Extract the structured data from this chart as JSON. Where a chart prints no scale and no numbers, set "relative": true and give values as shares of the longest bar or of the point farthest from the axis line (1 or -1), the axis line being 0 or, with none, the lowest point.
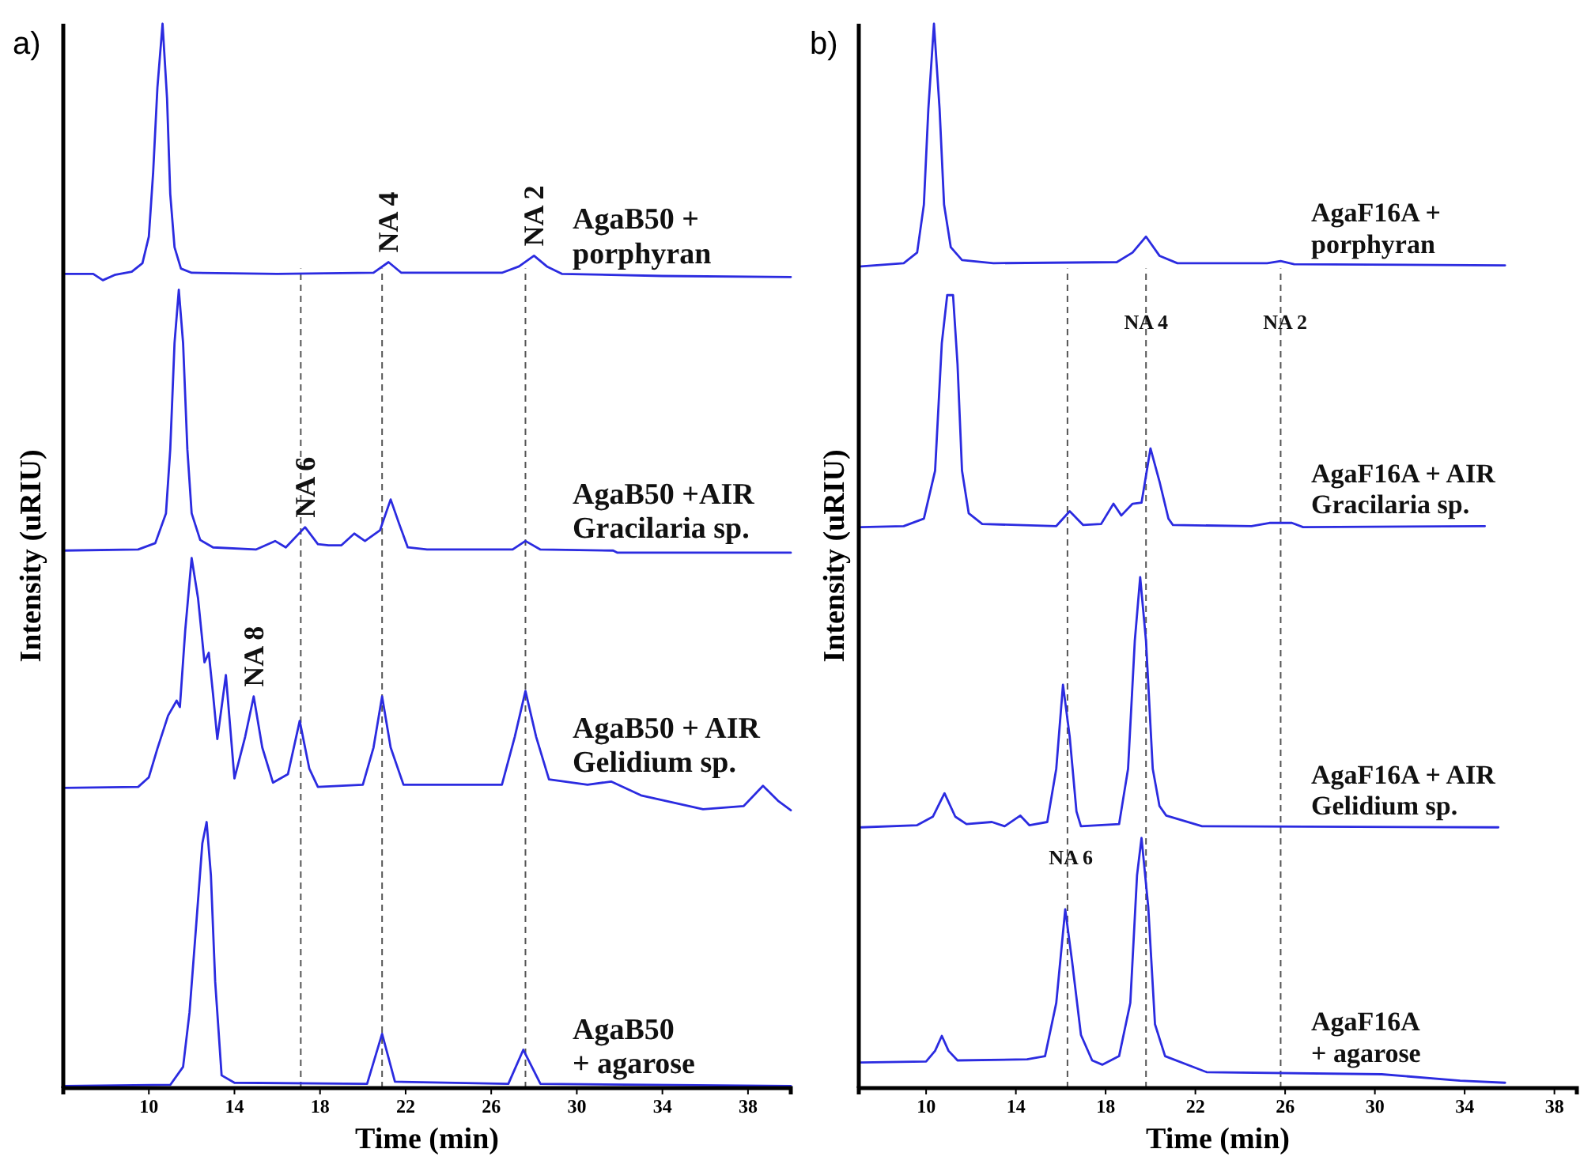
{
  "chart_data": [
    {
      "type": "line",
      "title": "a)",
      "xlabel": "Time (min)",
      "ylabel": "Intensity (uRIU)",
      "relative": true,
      "xlim": [
        6,
        40
      ],
      "xticks": [
        10,
        14,
        18,
        22,
        26,
        30,
        34,
        38
      ],
      "line_style": "solid",
      "marker": "none",
      "series": [
        {
          "name": "AgaB50 + porphyran",
          "color": "#2b2be0",
          "x": [
            6,
            7.4,
            7.85,
            8.4,
            9.2,
            9.7,
            10,
            10.2,
            10.4,
            10.64,
            10.85,
            11,
            11.2,
            11.5,
            12,
            16,
            20.5,
            21.2,
            21.8,
            26.5,
            27.3,
            28,
            28.6,
            29.3,
            34,
            40
          ],
          "values": [
            0.765,
            0.765,
            0.759,
            0.764,
            0.767,
            0.775,
            0.8,
            0.86,
            0.94,
            1,
            0.93,
            0.84,
            0.79,
            0.77,
            0.766,
            0.765,
            0.766,
            0.776,
            0.766,
            0.766,
            0.772,
            0.782,
            0.772,
            0.765,
            0.763,
            0.762
          ]
        },
        {
          "name": "AgaB50 +AIR Gracilaria sp.",
          "color": "#2b2be0",
          "x": [
            6,
            9.5,
            10.3,
            10.8,
            11,
            11.2,
            11.4,
            11.6,
            11.8,
            12,
            12.4,
            13,
            15,
            15.9,
            16.4,
            17.3,
            17.9,
            18.4,
            19,
            19.6,
            20.1,
            20.8,
            21.3,
            21.7,
            22.1,
            23,
            27,
            27.6,
            28.3,
            31.7,
            31.9,
            40
          ],
          "values": [
            0.505,
            0.506,
            0.512,
            0.54,
            0.6,
            0.7,
            0.75,
            0.7,
            0.6,
            0.54,
            0.515,
            0.508,
            0.506,
            0.514,
            0.508,
            0.527,
            0.511,
            0.51,
            0.51,
            0.521,
            0.514,
            0.524,
            0.553,
            0.53,
            0.508,
            0.506,
            0.506,
            0.514,
            0.506,
            0.505,
            0.503,
            0.503
          ]
        },
        {
          "name": "AgaB50 + AIR Gelidium sp.",
          "color": "#2b2be0",
          "x": [
            6,
            9.5,
            10,
            10.4,
            10.9,
            11.3,
            11.45,
            11.7,
            12,
            12.3,
            12.6,
            12.8,
            13,
            13.2,
            13.6,
            14,
            14.5,
            14.9,
            15.3,
            15.8,
            16.5,
            17.05,
            17.5,
            17.9,
            20,
            20.5,
            20.9,
            21.3,
            21.9,
            26.5,
            27.1,
            27.6,
            28.1,
            28.7,
            30.5,
            31.6,
            33,
            35.9,
            37.8,
            38.7,
            39.4,
            40
          ],
          "values": [
            0.282,
            0.283,
            0.292,
            0.319,
            0.35,
            0.364,
            0.358,
            0.43,
            0.498,
            0.46,
            0.4,
            0.409,
            0.37,
            0.328,
            0.388,
            0.291,
            0.33,
            0.368,
            0.32,
            0.287,
            0.295,
            0.345,
            0.3,
            0.283,
            0.285,
            0.32,
            0.368,
            0.32,
            0.285,
            0.285,
            0.33,
            0.373,
            0.33,
            0.29,
            0.285,
            0.288,
            0.275,
            0.262,
            0.265,
            0.284,
            0.27,
            0.261
          ]
        },
        {
          "name": "AgaB50 + agarose",
          "color": "#2b2be0",
          "x": [
            6,
            11,
            11.6,
            11.9,
            12.2,
            12.5,
            12.7,
            12.9,
            13.1,
            13.4,
            14,
            20.2,
            20.9,
            21.5,
            26.8,
            27.5,
            28.3,
            40
          ],
          "values": [
            0.002,
            0.003,
            0.02,
            0.071,
            0.15,
            0.23,
            0.25,
            0.2,
            0.1,
            0.012,
            0.005,
            0.004,
            0.051,
            0.006,
            0.004,
            0.036,
            0.004,
            0.002
          ]
        }
      ],
      "ref_lines": [
        {
          "axis": "x",
          "value": 17.1,
          "line_style": "dashed",
          "color": "#555555"
        },
        {
          "axis": "x",
          "value": 20.9,
          "line_style": "dashed",
          "color": "#555555"
        },
        {
          "axis": "x",
          "value": 27.6,
          "line_style": "dashed",
          "color": "#555555"
        }
      ],
      "annotations": [
        {
          "text": "NA 4",
          "x": 21.2,
          "y": 0.776
        },
        {
          "text": "NA 2",
          "x": 28,
          "y": 0.782
        },
        {
          "text": "NA 6",
          "x": 17.3,
          "y": 0.527
        },
        {
          "text": "NA 8",
          "x": 14.9,
          "y": 0.368
        }
      ]
    },
    {
      "type": "line",
      "title": "b)",
      "xlabel": "Time (min)",
      "ylabel": "Intensity (uRIU)",
      "relative": true,
      "xlim": [
        7,
        39
      ],
      "xticks": [
        10,
        14,
        18,
        22,
        26,
        30,
        34,
        38
      ],
      "line_style": "solid",
      "marker": "none",
      "series": [
        {
          "name": "AgaF16A + porphyran",
          "color": "#2b2be0",
          "x": [
            7.1,
            9,
            9.6,
            9.9,
            10.1,
            10.35,
            10.6,
            10.8,
            11.1,
            11.6,
            13,
            18.5,
            19.2,
            19.8,
            20.4,
            21.2,
            25.2,
            25.8,
            26.4,
            35.8
          ],
          "values": [
            0.772,
            0.775,
            0.785,
            0.83,
            0.92,
            1,
            0.92,
            0.83,
            0.79,
            0.778,
            0.775,
            0.776,
            0.785,
            0.8,
            0.782,
            0.775,
            0.775,
            0.777,
            0.774,
            0.773
          ]
        },
        {
          "name": "AgaF16A + AIR Gracilaria sp.",
          "color": "#2b2be0",
          "x": [
            7.1,
            9,
            9.9,
            10.4,
            10.7,
            10.94,
            11.2,
            11.4,
            11.6,
            11.9,
            12.5,
            15.8,
            16.4,
            17,
            17.8,
            18.35,
            18.7,
            19.2,
            19.6,
            20,
            20.4,
            20.8,
            21,
            24.5,
            25.3,
            26.3,
            26.8,
            34.9
          ],
          "values": [
            0.527,
            0.528,
            0.535,
            0.58,
            0.7,
            0.745,
            0.745,
            0.68,
            0.58,
            0.54,
            0.53,
            0.528,
            0.542,
            0.529,
            0.53,
            0.549,
            0.538,
            0.549,
            0.55,
            0.601,
            0.57,
            0.535,
            0.529,
            0.528,
            0.531,
            0.531,
            0.527,
            0.528
          ]
        },
        {
          "name": "AgaF16A + AIR Gelidium sp.",
          "color": "#2b2be0",
          "x": [
            7.1,
            9.6,
            10.3,
            10.82,
            11.3,
            11.8,
            12.93,
            13.5,
            14.2,
            14.6,
            15.4,
            15.8,
            16.1,
            16.4,
            16.7,
            16.9,
            18.6,
            19,
            19.3,
            19.54,
            19.8,
            20.1,
            20.4,
            20.7,
            22.3,
            35.5
          ],
          "values": [
            0.245,
            0.247,
            0.255,
            0.277,
            0.255,
            0.248,
            0.25,
            0.246,
            0.256,
            0.247,
            0.25,
            0.3,
            0.379,
            0.33,
            0.26,
            0.246,
            0.248,
            0.3,
            0.42,
            0.48,
            0.42,
            0.3,
            0.265,
            0.256,
            0.246,
            0.245
          ]
        },
        {
          "name": "AgaF16A + agarose",
          "color": "#2b2be0",
          "x": [
            7.1,
            10,
            10.4,
            10.7,
            11,
            11.4,
            14.5,
            15.3,
            15.8,
            16.2,
            16.5,
            16.9,
            17.4,
            17.85,
            18.6,
            19.1,
            19.4,
            19.6,
            19.9,
            20.2,
            20.65,
            22.5,
            30.3,
            33.8,
            35.8
          ],
          "values": [
            0.024,
            0.025,
            0.035,
            0.049,
            0.035,
            0.026,
            0.027,
            0.03,
            0.08,
            0.168,
            0.12,
            0.05,
            0.026,
            0.022,
            0.03,
            0.08,
            0.2,
            0.235,
            0.17,
            0.06,
            0.03,
            0.015,
            0.013,
            0.007,
            0.005
          ]
        }
      ],
      "ref_lines": [
        {
          "axis": "x",
          "value": 16.3,
          "line_style": "dashed",
          "color": "#555555"
        },
        {
          "axis": "x",
          "value": 19.8,
          "line_style": "dashed",
          "color": "#555555"
        },
        {
          "axis": "x",
          "value": 25.8,
          "line_style": "dashed",
          "color": "#555555"
        }
      ],
      "annotations": [
        {
          "text": "NA 4",
          "x": 19.8,
          "y": 0.72
        },
        {
          "text": "NA 2",
          "x": 26,
          "y": 0.72
        },
        {
          "text": "NA 6",
          "x": 16.45,
          "y": 0.217
        }
      ]
    }
  ]
}
